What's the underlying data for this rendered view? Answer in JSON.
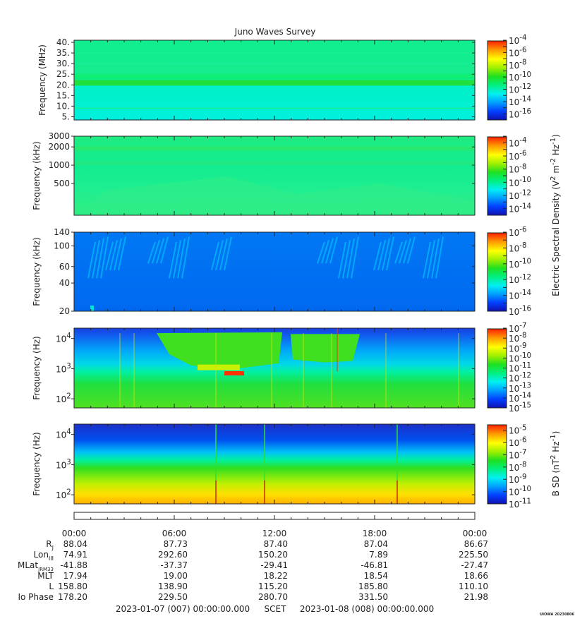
{
  "title": "Juno Waves Survey",
  "colors": {
    "colormap": [
      "#1010b0",
      "#0040ff",
      "#00a0ff",
      "#00f0f0",
      "#00f080",
      "#20e020",
      "#a0f000",
      "#ffff00",
      "#ffa000",
      "#ff2000"
    ]
  },
  "chart_data": [
    {
      "type": "heatmap",
      "name": "panel-1",
      "ylabel": "Frequency (MHz)",
      "yscale": "linear",
      "ylim": [
        3.5,
        41
      ],
      "y_ticks": [
        {
          "v": 5,
          "label": "5."
        },
        {
          "v": 10,
          "label": "10."
        },
        {
          "v": 15,
          "label": "15."
        },
        {
          "v": 20,
          "label": "20."
        },
        {
          "v": 25,
          "label": "25."
        },
        {
          "v": 30,
          "label": "30."
        },
        {
          "v": 35,
          "label": "35."
        },
        {
          "v": 40,
          "label": "40."
        }
      ],
      "colorbar": {
        "min_exp": -17,
        "max_exp": -4,
        "labels": [
          -4,
          -6,
          -8,
          -10,
          -12,
          -14,
          -16
        ]
      },
      "colorbar_title": ""
    },
    {
      "type": "heatmap",
      "name": "panel-2",
      "ylabel": "Frequency (kHz)",
      "yscale": "log",
      "ylim": [
        150,
        3000
      ],
      "y_ticks": [
        {
          "v": 500,
          "label": "500"
        },
        {
          "v": 1000,
          "label": "1000"
        },
        {
          "v": 2000,
          "label": "2000"
        },
        {
          "v": 3000,
          "label": "3000"
        }
      ],
      "colorbar": {
        "min_exp": -15,
        "max_exp": -3,
        "labels": [
          -4,
          -6,
          -8,
          -10,
          -12,
          -14
        ]
      },
      "colorbar_title": "Electric Spectral Density (V^2 m^-2 Hz^-1)"
    },
    {
      "type": "heatmap",
      "name": "panel-3",
      "ylabel": "Frequency (kHz)",
      "yscale": "log",
      "ylim": [
        20,
        140
      ],
      "y_ticks": [
        {
          "v": 20,
          "label": "20"
        },
        {
          "v": 40,
          "label": "40"
        },
        {
          "v": 60,
          "label": "60"
        },
        {
          "v": 100,
          "label": "100"
        },
        {
          "v": 140,
          "label": "140"
        }
      ],
      "colorbar": {
        "min_exp": -16,
        "max_exp": -6,
        "labels": [
          -6,
          -8,
          -10,
          -12,
          -14,
          -16
        ]
      },
      "colorbar_title": ""
    },
    {
      "type": "heatmap",
      "name": "panel-4",
      "ylabel": "Frequency (Hz)",
      "yscale": "log",
      "ylim": [
        50,
        22000
      ],
      "y_ticks": [
        {
          "v": 100,
          "label": "10^2"
        },
        {
          "v": 1000,
          "label": "10^3"
        },
        {
          "v": 10000,
          "label": "10^4"
        }
      ],
      "colorbar": {
        "min_exp": -15,
        "max_exp": -7,
        "labels": [
          -7,
          -8,
          -9,
          -10,
          -11,
          -12,
          -13,
          -14,
          -15
        ]
      },
      "colorbar_title": ""
    },
    {
      "type": "heatmap",
      "name": "panel-5",
      "ylabel": "Frequency (Hz)",
      "yscale": "log",
      "ylim": [
        50,
        22000
      ],
      "y_ticks": [
        {
          "v": 100,
          "label": "10^2"
        },
        {
          "v": 1000,
          "label": "10^3"
        },
        {
          "v": 10000,
          "label": "10^4"
        }
      ],
      "colorbar": {
        "min_exp": -11,
        "max_exp": -4.5,
        "labels": [
          -5,
          -6,
          -7,
          -8,
          -9,
          -10,
          -11
        ]
      },
      "colorbar_title": "B SD (nT^2 Hz^-1)"
    }
  ],
  "ephemeris": {
    "times": [
      "00:00",
      "06:00",
      "12:00",
      "18:00",
      "00:00"
    ],
    "rows": [
      {
        "label": "R",
        "sub": "J",
        "values": [
          "88.04",
          "87.73",
          "87.40",
          "87.04",
          "86.67"
        ]
      },
      {
        "label": "Lon",
        "sub": "III",
        "values": [
          "74.91",
          "292.60",
          "150.20",
          "7.89",
          "225.50"
        ]
      },
      {
        "label": "MLat",
        "sub": "JRM33",
        "values": [
          "-41.88",
          "-37.37",
          "-29.41",
          "-46.81",
          "-27.47"
        ]
      },
      {
        "label": "MLT",
        "sub": "",
        "values": [
          "17.94",
          "19.00",
          "18.22",
          "18.54",
          "18.66"
        ]
      },
      {
        "label": "L",
        "sub": "",
        "values": [
          "158.80",
          "138.90",
          "115.20",
          "185.80",
          "110.10"
        ]
      },
      {
        "label": "Io Phase",
        "sub": "",
        "values": [
          "178.20",
          "229.50",
          "280.70",
          "331.50",
          "21.98"
        ]
      }
    ]
  },
  "footer": {
    "start": "2023-01-07 (007) 00:00:00.000",
    "scet": "SCET",
    "end": "2023-01-08 (008) 00:00:00.000",
    "stamp": "UIOWA 20230806"
  }
}
